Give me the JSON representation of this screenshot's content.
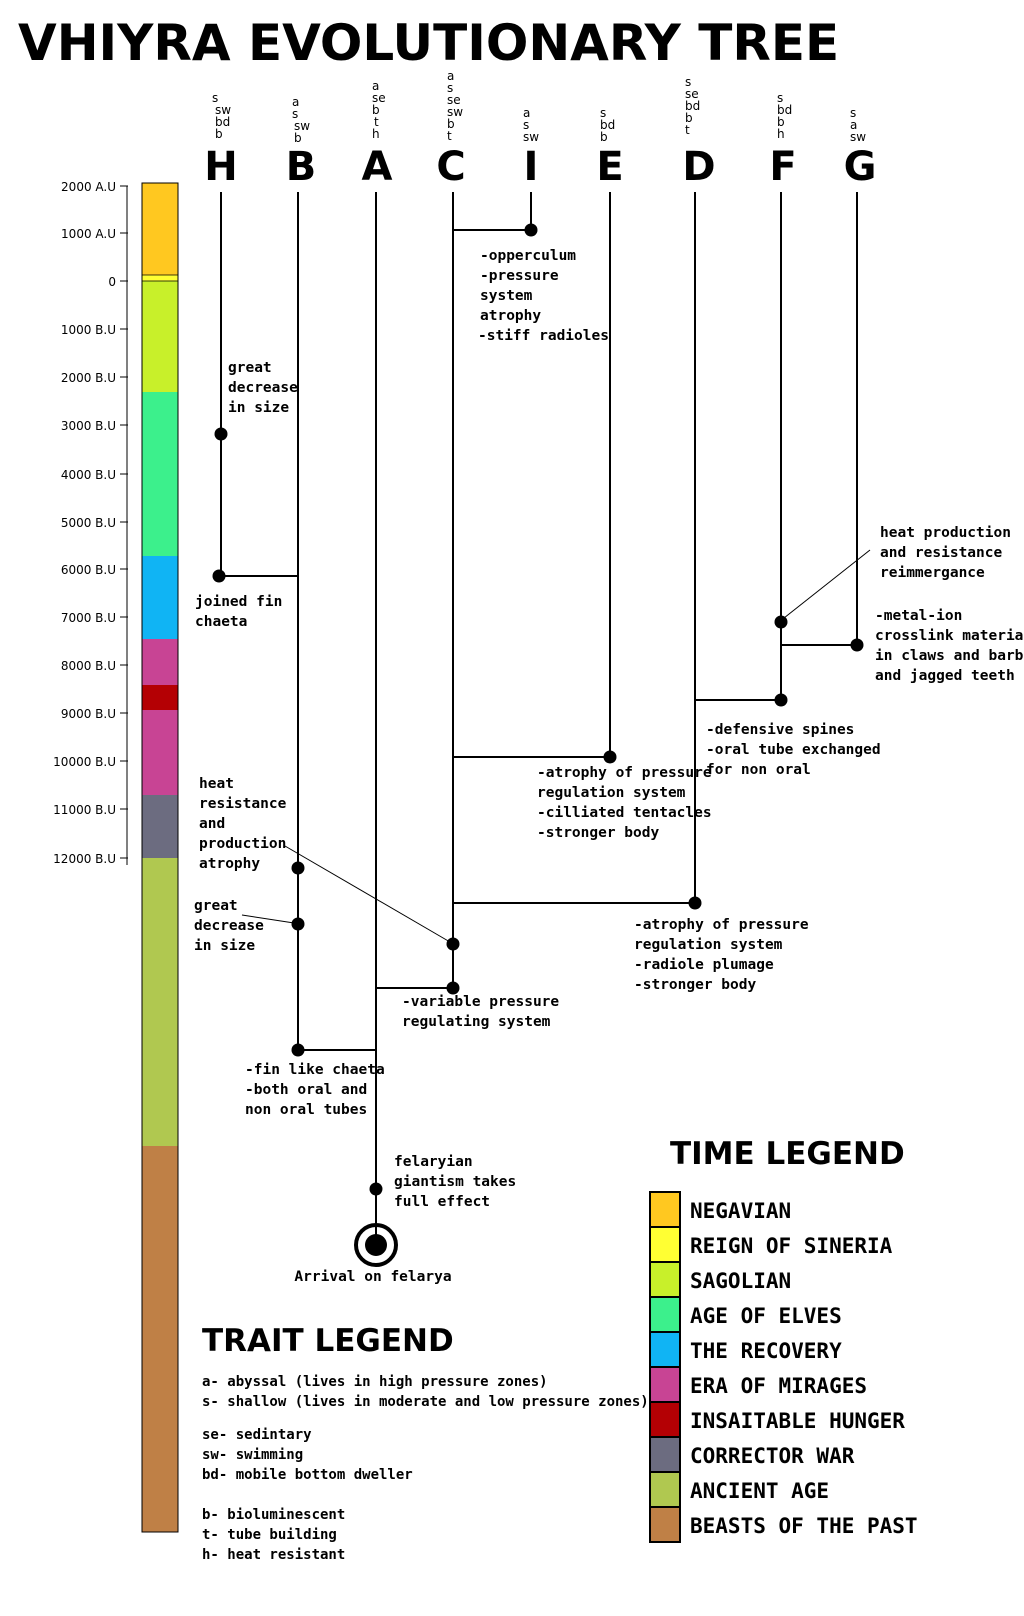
{
  "title": "VHIYRA EVOLUTIONARY TREE",
  "species": [
    {
      "letter": "H",
      "traits": [
        "s",
        "sw",
        "bd",
        "b"
      ]
    },
    {
      "letter": "B",
      "traits": [
        "a",
        "s",
        "sw",
        "b"
      ]
    },
    {
      "letter": "A",
      "traits": [
        "a",
        "se",
        "b",
        "t",
        "h"
      ]
    },
    {
      "letter": "C",
      "traits": [
        "a",
        "s",
        "se",
        "sw",
        "b",
        "t"
      ]
    },
    {
      "letter": "I",
      "traits": [
        "a",
        "s",
        "sw"
      ]
    },
    {
      "letter": "E",
      "traits": [
        "s",
        "bd",
        "b"
      ]
    },
    {
      "letter": "D",
      "traits": [
        "s",
        "se",
        "bd",
        "b",
        "t"
      ]
    },
    {
      "letter": "F",
      "traits": [
        "s",
        "bd",
        "b",
        "h"
      ]
    },
    {
      "letter": "G",
      "traits": [
        "s",
        "a",
        "sw"
      ]
    }
  ],
  "timeline": {
    "ticks": [
      "2000 A.U",
      "1000 A.U",
      "0",
      "1000 B.U",
      "2000 B.U",
      "3000 B.U",
      "4000 B.U",
      "5000 B.U",
      "6000 B.U",
      "7000 B.U",
      "8000 B.U",
      "9000 B.U",
      "10000 B.U",
      "11000 B.U",
      "12000 B.U"
    ],
    "era_colors": [
      "#ffc820",
      "#ffff33",
      "#c8f02a",
      "#3cf08c",
      "#10b4f4",
      "#c84494",
      "#b40004",
      "#6c6c80",
      "#b0c850",
      "#bf8046"
    ]
  },
  "annotations": {
    "i_split": [
      "-opperculum",
      "-pressure",
      "system",
      "atrophy",
      "-stiff radioles"
    ],
    "h_size": [
      "great",
      "decrease",
      "in size"
    ],
    "h_fin": [
      "joined fin",
      "chaeta"
    ],
    "f_heat": [
      "heat production",
      "and resistance",
      "reimmergance"
    ],
    "g_split": [
      "-metal-ion",
      "crosslink material",
      "in claws and barbs",
      "and jagged teeth"
    ],
    "d_split": [
      "-defensive spines",
      "-oral tube exchanged",
      "for non oral"
    ],
    "e_split": [
      "-atrophy of pressure",
      "regulation system",
      "-cilliated tentacles",
      "-stronger body"
    ],
    "c_heat": [
      "heat",
      "resistance",
      "and",
      "production",
      "atrophy"
    ],
    "b_size": [
      "great",
      "decrease",
      "in size"
    ],
    "dc_split": [
      "-atrophy of pressure",
      "regulation system",
      "-radiole plumage",
      "-stronger body"
    ],
    "ca_split": [
      "-variable pressure",
      "regulating system"
    ],
    "ba_split": [
      "-fin like chaeta",
      "-both oral and",
      "non oral tubes"
    ],
    "giant": [
      "felaryian",
      "giantism takes",
      "full effect"
    ],
    "arrival": "Arrival on felarya"
  },
  "time_legend": {
    "title": "TIME LEGEND",
    "items": [
      {
        "label": "NEGAVIAN",
        "color": "#ffc820"
      },
      {
        "label": "REIGN OF SINERIA",
        "color": "#ffff33"
      },
      {
        "label": "SAGOLIAN",
        "color": "#c8f02a"
      },
      {
        "label": "AGE OF ELVES",
        "color": "#3cf08c"
      },
      {
        "label": "THE RECOVERY",
        "color": "#10b4f4"
      },
      {
        "label": "ERA OF MIRAGES",
        "color": "#c84494"
      },
      {
        "label": "INSAITABLE HUNGER",
        "color": "#b40004"
      },
      {
        "label": "CORRECTOR WAR",
        "color": "#6c6c80"
      },
      {
        "label": "ANCIENT AGE",
        "color": "#b0c850"
      },
      {
        "label": "BEASTS OF THE PAST",
        "color": "#bf8046"
      }
    ]
  },
  "trait_legend": {
    "title": "TRAIT LEGEND",
    "groups": [
      [
        "a- abyssal (lives in high pressure zones)",
        "s- shallow (lives in moderate and low pressure zones)"
      ],
      [
        "se- sedintary",
        "sw- swimming",
        "bd- mobile bottom dweller"
      ],
      [
        "b- bioluminescent",
        "t- tube building",
        "h- heat resistant"
      ]
    ]
  }
}
